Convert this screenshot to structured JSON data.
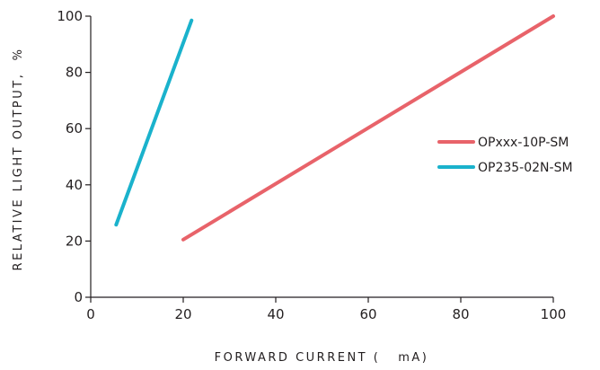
{
  "chart_data": {
    "type": "line",
    "title": "",
    "xlabel": "FORWARD CURRENT (   mA)",
    "ylabel": "RELATIVE LIGHT OUTPUT,  %",
    "xlim": [
      0,
      100
    ],
    "ylim": [
      0,
      100
    ],
    "x_ticks": [
      0,
      20,
      40,
      60,
      80,
      100
    ],
    "y_ticks": [
      0,
      20,
      40,
      60,
      80,
      100
    ],
    "grid": false,
    "legend_position": "right",
    "series": [
      {
        "name": "OPxxx-10P-SM",
        "color": "#e8636a",
        "points": [
          [
            20,
            20.5
          ],
          [
            100,
            100
          ]
        ]
      },
      {
        "name": "OP235-02N-SM",
        "color": "#1ab2cc",
        "points": [
          [
            5.5,
            25.8
          ],
          [
            21.8,
            98.5
          ]
        ]
      }
    ]
  }
}
